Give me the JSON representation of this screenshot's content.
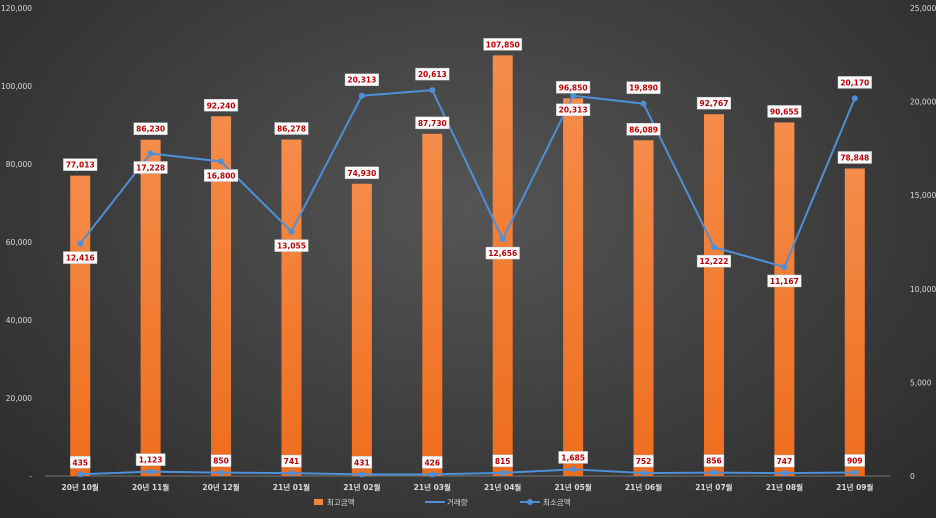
{
  "chart_data": {
    "type": "bar",
    "categories": [
      "20년 10월",
      "20년 11월",
      "20년 12월",
      "21년 01월",
      "21년 02월",
      "21년 03월",
      "21년 04월",
      "21년 05월",
      "21년 06월",
      "21년 07월",
      "21년 08월",
      "21년 09월"
    ],
    "series": [
      {
        "name": "최고금액",
        "kind": "bar",
        "axis": "left",
        "color": "#f4853f",
        "values": [
          77013,
          86230,
          92240,
          86278,
          74930,
          87730,
          107850,
          96850,
          86089,
          92767,
          90655,
          78848
        ]
      },
      {
        "name": "거래량",
        "kind": "line",
        "axis": "right",
        "color": "#4f8fd6",
        "values": [
          12416,
          17228,
          16800,
          13055,
          20313,
          20613,
          12656,
          20313,
          19890,
          12222,
          11167,
          20170
        ]
      },
      {
        "name": "최소금액",
        "kind": "line-marker",
        "axis": "left",
        "color": "#4f8fd6",
        "values": [
          435,
          1123,
          850,
          741,
          431,
          426,
          815,
          1685,
          752,
          856,
          747,
          909
        ]
      }
    ],
    "y_left": {
      "min": 0,
      "max": 120000,
      "step": 20000,
      "ticks": [
        "-",
        "20,000",
        "40,000",
        "60,000",
        "80,000",
        "100,000",
        "120,000"
      ]
    },
    "y_right": {
      "min": 0,
      "max": 25000,
      "step": 5000,
      "ticks": [
        "0",
        "5,000",
        "10,000",
        "15,000",
        "20,000",
        "25,000"
      ]
    },
    "grid": false,
    "legend_position": "bottom",
    "data_labels": true,
    "bar_value_labels": [
      "77,013",
      "86,230",
      "92,240",
      "86,278",
      "74,930",
      "87,730",
      "107,850",
      "96,850",
      "86,089",
      "92,767",
      "90,655",
      "78,848"
    ],
    "volume_value_labels": [
      "12,416",
      "17,228",
      "16,800",
      "13,055",
      "20,313",
      "20,613",
      "12,656",
      "20,313",
      "19,890",
      "12,222",
      "11,167",
      "20,170"
    ],
    "min_value_labels": [
      "435",
      "1,123",
      "850",
      "741",
      "431",
      "426",
      "815",
      "1,685",
      "752",
      "856",
      "747",
      "909"
    ]
  }
}
